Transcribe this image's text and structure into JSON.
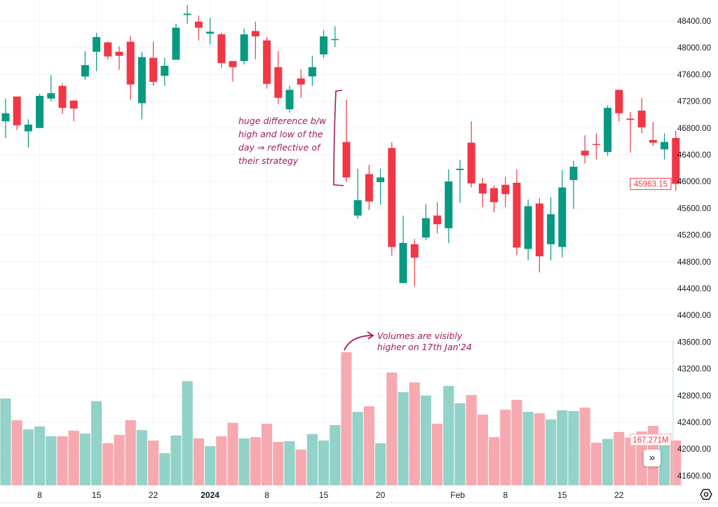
{
  "chart_data": {
    "type": "candlestick",
    "title": "",
    "price_axis": {
      "ticks": [
        "48400.00",
        "48000.00",
        "47600.00",
        "47200.00",
        "46800.00",
        "46400.00",
        "46000.00",
        "45600.00",
        "45200.00",
        "44800.00",
        "44400.00",
        "44000.00",
        "43600.00",
        "43200.00",
        "42800.00",
        "42400.00",
        "42000.00",
        "41600.00"
      ],
      "range": [
        41400,
        48700
      ]
    },
    "x_ticks": [
      {
        "label": "8",
        "index": 3,
        "bold": false
      },
      {
        "label": "15",
        "index": 8,
        "bold": false
      },
      {
        "label": "22",
        "index": 13,
        "bold": false
      },
      {
        "label": "2024",
        "index": 18,
        "bold": true
      },
      {
        "label": "8",
        "index": 23,
        "bold": false
      },
      {
        "label": "15",
        "index": 28,
        "bold": false
      },
      {
        "label": "20",
        "index": 33,
        "bold": false
      },
      {
        "label": "Feb",
        "index": 39.8,
        "bold": false
      },
      {
        "label": "8",
        "index": 44,
        "bold": false
      },
      {
        "label": "15",
        "index": 49,
        "bold": false
      },
      {
        "label": "22",
        "index": 54,
        "bold": false
      }
    ],
    "candle_fields": [
      "open",
      "high",
      "low",
      "close",
      "volume_M"
    ],
    "candles": [
      [
        46900,
        47240,
        46650,
        47020,
        324
      ],
      [
        47270,
        47270,
        46770,
        46840,
        243
      ],
      [
        46750,
        46930,
        46510,
        46850,
        209
      ],
      [
        46800,
        47310,
        46800,
        47280,
        220
      ],
      [
        47240,
        47590,
        47200,
        47320,
        183
      ],
      [
        47430,
        47470,
        47010,
        47100,
        183
      ],
      [
        47210,
        47210,
        46900,
        47090,
        204
      ],
      [
        47570,
        47950,
        47520,
        47740,
        193
      ],
      [
        47940,
        48220,
        47650,
        48160,
        314
      ],
      [
        48080,
        48090,
        47820,
        47870,
        157
      ],
      [
        47940,
        48020,
        47670,
        47880,
        188
      ],
      [
        48090,
        48180,
        47220,
        47450,
        243
      ],
      [
        47170,
        47940,
        46930,
        47860,
        206
      ],
      [
        47850,
        48090,
        47430,
        47490,
        167
      ],
      [
        47580,
        47850,
        47430,
        47730,
        120
      ],
      [
        47820,
        48360,
        47820,
        48300,
        186
      ],
      [
        48490,
        48640,
        48360,
        48510,
        389
      ],
      [
        48390,
        48480,
        48110,
        48300,
        175
      ],
      [
        48210,
        48450,
        48050,
        48240,
        146
      ],
      [
        48200,
        48230,
        47700,
        47770,
        183
      ],
      [
        47800,
        47800,
        47490,
        47710,
        233
      ],
      [
        47800,
        48290,
        47750,
        48200,
        175
      ],
      [
        48250,
        48390,
        47830,
        48170,
        180
      ],
      [
        48110,
        48160,
        47390,
        47460,
        230
      ],
      [
        47710,
        47950,
        47160,
        47250,
        162
      ],
      [
        47080,
        47430,
        47030,
        47370,
        165
      ],
      [
        47540,
        47680,
        47250,
        47450,
        133
      ],
      [
        47570,
        47880,
        47430,
        47710,
        191
      ],
      [
        47900,
        48260,
        47850,
        48170,
        167
      ],
      [
        48120,
        48320,
        48010,
        48130,
        225
      ],
      [
        46590,
        47220,
        45990,
        46060,
        497
      ],
      [
        45490,
        46190,
        45440,
        45720,
        274
      ],
      [
        46110,
        46250,
        45570,
        45700,
        295
      ],
      [
        45990,
        46190,
        45650,
        46060,
        157
      ],
      [
        46500,
        46590,
        44890,
        45020,
        421
      ],
      [
        44480,
        45490,
        44480,
        45080,
        348
      ],
      [
        45060,
        45140,
        44430,
        44860,
        384
      ],
      [
        45160,
        45660,
        45120,
        45450,
        335
      ],
      [
        45490,
        45690,
        45220,
        45360,
        230
      ],
      [
        45300,
        46180,
        45080,
        46000,
        371
      ],
      [
        46170,
        46320,
        45680,
        46190,
        306
      ],
      [
        46580,
        46900,
        45910,
        45970,
        337
      ],
      [
        45970,
        46050,
        45620,
        45820,
        264
      ],
      [
        45900,
        45940,
        45540,
        45690,
        180
      ],
      [
        45950,
        46070,
        45620,
        45810,
        282
      ],
      [
        45980,
        46180,
        44900,
        45010,
        319
      ],
      [
        44990,
        45730,
        44820,
        45630,
        274
      ],
      [
        45670,
        45750,
        44640,
        44880,
        269
      ],
      [
        45060,
        45760,
        44820,
        45510,
        246
      ],
      [
        45020,
        46170,
        44860,
        45910,
        280
      ],
      [
        46020,
        46310,
        45590,
        46220,
        277
      ],
      [
        46460,
        46690,
        46270,
        46390,
        290
      ],
      [
        46560,
        46720,
        46330,
        46550,
        159
      ],
      [
        46440,
        47140,
        46380,
        47100,
        173
      ],
      [
        47370,
        47370,
        46900,
        47020,
        199
      ],
      [
        46940,
        47040,
        46430,
        46920,
        178
      ],
      [
        47060,
        47250,
        46720,
        46810,
        201
      ],
      [
        46620,
        46890,
        46530,
        46580,
        222
      ],
      [
        46480,
        46720,
        46330,
        46590,
        157
      ],
      [
        46650,
        46760,
        45860,
        45963.15,
        167.271
      ]
    ],
    "last_price_label": "45963.15",
    "last_volume_label": "167.271M",
    "colors": {
      "up": "#089981",
      "down": "#f23645",
      "vol_up": "#92d2c8",
      "vol_down": "#f7a9b0",
      "annotation": "#a0195e",
      "grid": "#f0f3fa"
    }
  },
  "annotations": {
    "note1": "huge difference b/w high and low of the day ⇒ reflective of their strategy",
    "note2": "Volumes are visibly higher on 17th Jan'24"
  },
  "controls": {
    "scroll_label": "»"
  }
}
